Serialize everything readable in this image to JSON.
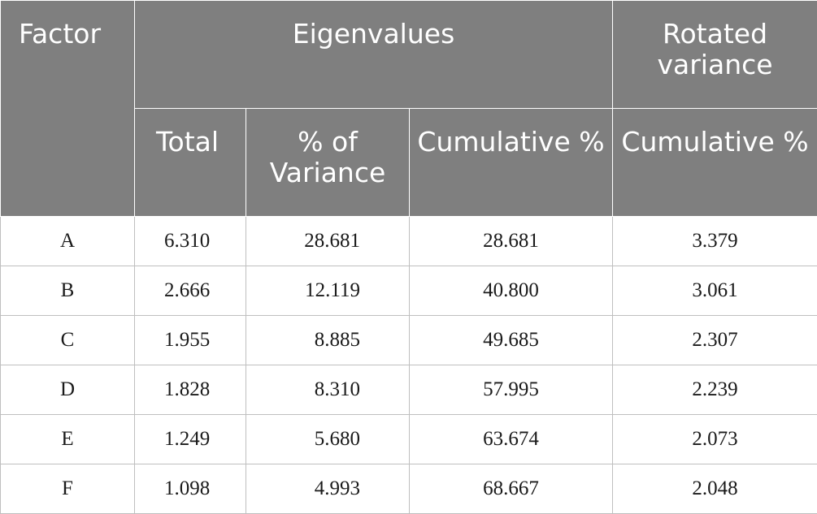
{
  "header": {
    "factor": "Factor",
    "eigenvalues": "Eigenvalues",
    "rotated_variance": "Rotated variance",
    "total": "Total",
    "pct_of_variance": "% of Variance",
    "cumulative_pct": "Cumulative %",
    "rotated_cumulative_pct": "Cumulative %"
  },
  "rows": [
    {
      "factor": "A",
      "total": "6.310",
      "pct": "28.681",
      "cum": "28.681",
      "rot": "3.379"
    },
    {
      "factor": "B",
      "total": "2.666",
      "pct": "12.119",
      "cum": "40.800",
      "rot": "3.061"
    },
    {
      "factor": "C",
      "total": "1.955",
      "pct": "8.885",
      "cum": "49.685",
      "rot": "2.307"
    },
    {
      "factor": "D",
      "total": "1.828",
      "pct": "8.310",
      "cum": "57.995",
      "rot": "2.239"
    },
    {
      "factor": "E",
      "total": "1.249",
      "pct": "5.680",
      "cum": "63.674",
      "rot": "2.073"
    },
    {
      "factor": "F",
      "total": "1.098",
      "pct": "4.993",
      "cum": "68.667",
      "rot": "2.048"
    }
  ]
}
